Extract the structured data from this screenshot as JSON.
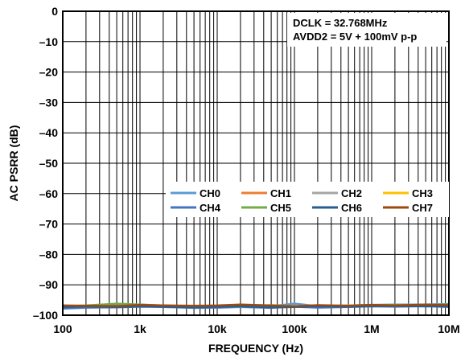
{
  "chart_data": {
    "type": "line",
    "xlabel": "FREQUENCY (Hz)",
    "ylabel": "AC PSRR (dB)",
    "xscale": "log",
    "xlim": [
      100,
      10000000
    ],
    "ylim": [
      -100,
      0
    ],
    "x_ticks": [
      100,
      1000,
      10000,
      100000,
      1000000,
      10000000
    ],
    "x_tick_labels": [
      "100",
      "1k",
      "10k",
      "100k",
      "1M",
      "10M"
    ],
    "y_ticks": [
      0,
      -10,
      -20,
      -30,
      -40,
      -50,
      -60,
      -70,
      -80,
      -90,
      -100
    ],
    "y_tick_labels": [
      "0",
      "–10",
      "–20",
      "–30",
      "–40",
      "–50",
      "–60",
      "–70",
      "–80",
      "–90",
      "–100"
    ],
    "grid": true,
    "legend_position": "center-right",
    "annotations": [
      "DCLK = 32.768MHz",
      "AVDD2 = 5V + 100mV p-p"
    ],
    "series": [
      {
        "name": "CH0",
        "color": "#5b9bd5",
        "x": [
          100,
          200,
          500,
          1000,
          2000,
          5000,
          10000,
          20000,
          50000,
          100000,
          200000,
          500000,
          1000000,
          2000000,
          5000000,
          10000000
        ],
        "y": [
          -97,
          -97,
          -96.8,
          -96.5,
          -96.8,
          -97,
          -97.2,
          -96.8,
          -97,
          -96.2,
          -97,
          -96.8,
          -96.6,
          -96.5,
          -96.5,
          -96.3
        ]
      },
      {
        "name": "CH1",
        "color": "#ed7d31",
        "x": [
          100,
          200,
          500,
          1000,
          2000,
          5000,
          10000,
          20000,
          50000,
          100000,
          200000,
          500000,
          1000000,
          2000000,
          5000000,
          10000000
        ],
        "y": [
          -97.5,
          -97.3,
          -97,
          -96.8,
          -97,
          -97.3,
          -97.1,
          -96.7,
          -97.2,
          -97,
          -97.3,
          -96.9,
          -97,
          -96.8,
          -96.6,
          -96.8
        ]
      },
      {
        "name": "CH2",
        "color": "#a5a5a5",
        "x": [
          100,
          200,
          500,
          1000,
          2000,
          5000,
          10000,
          20000,
          50000,
          100000,
          200000,
          500000,
          1000000,
          2000000,
          5000000,
          10000000
        ],
        "y": [
          -97.2,
          -97,
          -97.2,
          -96.9,
          -97.1,
          -97,
          -97.4,
          -97,
          -96.9,
          -97.1,
          -96.9,
          -97.1,
          -96.8,
          -97,
          -96.7,
          -96.9
        ]
      },
      {
        "name": "CH3",
        "color": "#ffc000",
        "x": [
          100,
          200,
          500,
          1000,
          2000,
          5000,
          10000,
          20000,
          50000,
          100000,
          200000,
          500000,
          1000000,
          2000000,
          5000000,
          10000000
        ],
        "y": [
          -97.4,
          -97.2,
          -97.1,
          -97,
          -96.9,
          -97.2,
          -97,
          -97.1,
          -97.3,
          -97,
          -97.2,
          -96.8,
          -96.9,
          -96.7,
          -96.9,
          -96.6
        ]
      },
      {
        "name": "CH4",
        "color": "#4472c4",
        "x": [
          100,
          200,
          500,
          1000,
          2000,
          5000,
          10000,
          20000,
          50000,
          100000,
          200000,
          500000,
          1000000,
          2000000,
          5000000,
          10000000
        ],
        "y": [
          -97.8,
          -97.5,
          -97.4,
          -97.2,
          -97.3,
          -97.6,
          -97.5,
          -97.3,
          -97.6,
          -97.2,
          -97.5,
          -97.3,
          -97.1,
          -97.2,
          -97,
          -97.3
        ]
      },
      {
        "name": "CH5",
        "color": "#70ad47",
        "x": [
          100,
          200,
          500,
          1000,
          2000,
          5000,
          10000,
          20000,
          50000,
          100000,
          200000,
          500000,
          1000000,
          2000000,
          5000000,
          10000000
        ],
        "y": [
          -97,
          -96.8,
          -96.2,
          -96.5,
          -96.9,
          -97.1,
          -96.9,
          -97.2,
          -96.7,
          -97,
          -96.8,
          -97,
          -96.7,
          -96.6,
          -96.8,
          -96.4
        ]
      },
      {
        "name": "CH6",
        "color": "#255e91",
        "x": [
          100,
          200,
          500,
          1000,
          2000,
          5000,
          10000,
          20000,
          50000,
          100000,
          200000,
          500000,
          1000000,
          2000000,
          5000000,
          10000000
        ],
        "y": [
          -97.3,
          -97.1,
          -97.3,
          -97.1,
          -97.2,
          -97.4,
          -97.2,
          -97,
          -97.4,
          -97.3,
          -97,
          -97.2,
          -97,
          -96.9,
          -97.1,
          -97
        ]
      },
      {
        "name": "CH7",
        "color": "#9e480e",
        "x": [
          100,
          200,
          500,
          1000,
          2000,
          5000,
          10000,
          20000,
          50000,
          100000,
          200000,
          500000,
          1000000,
          2000000,
          5000000,
          10000000
        ],
        "y": [
          -96.8,
          -96.9,
          -97,
          -96.6,
          -96.8,
          -96.9,
          -96.8,
          -96.5,
          -96.8,
          -97.1,
          -96.7,
          -96.9,
          -96.6,
          -96.8,
          -96.5,
          -96.7
        ]
      }
    ]
  }
}
